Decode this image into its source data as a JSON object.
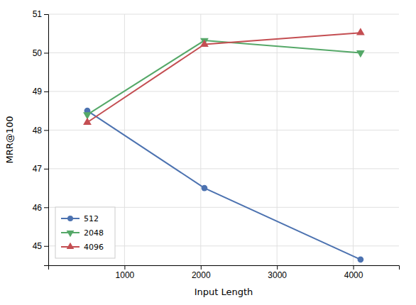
{
  "chart_data": {
    "type": "line",
    "x": [
      512,
      2048,
      4096
    ],
    "series": [
      {
        "name": "512",
        "color": "#4c72b0",
        "marker": "circle",
        "values": [
          48.5,
          46.5,
          44.65
        ]
      },
      {
        "name": "2048",
        "color": "#55a868",
        "marker": "triangle-down",
        "values": [
          48.4,
          50.32,
          50.0
        ]
      },
      {
        "name": "4096",
        "color": "#c44e52",
        "marker": "triangle-up",
        "values": [
          48.2,
          50.22,
          50.52
        ]
      }
    ],
    "xlabel": "Input Length",
    "ylabel": "MRR@100",
    "xlim": [
      0,
      4600
    ],
    "ylim": [
      44.5,
      51.0
    ],
    "xticks": [
      1000,
      2000,
      3000,
      4000
    ],
    "yticks": [
      45,
      46,
      47,
      48,
      49,
      50,
      51
    ],
    "grid": true,
    "legend": "lower left"
  }
}
